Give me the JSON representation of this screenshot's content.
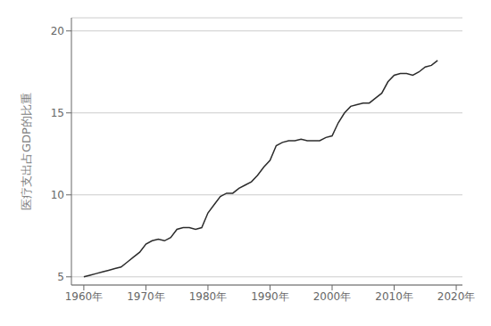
{
  "chart_data": {
    "type": "line",
    "x": [
      1960,
      1961,
      1962,
      1963,
      1964,
      1965,
      1966,
      1967,
      1968,
      1969,
      1970,
      1971,
      1972,
      1973,
      1974,
      1975,
      1976,
      1977,
      1978,
      1979,
      1980,
      1981,
      1982,
      1983,
      1984,
      1985,
      1986,
      1987,
      1988,
      1989,
      1990,
      1991,
      1992,
      1993,
      1994,
      1995,
      1996,
      1997,
      1998,
      1999,
      2000,
      2001,
      2002,
      2003,
      2004,
      2005,
      2006,
      2007,
      2008,
      2009,
      2010,
      2011,
      2012,
      2013,
      2014,
      2015,
      2016,
      2017
    ],
    "values": [
      5.0,
      5.1,
      5.2,
      5.3,
      5.4,
      5.5,
      5.6,
      5.9,
      6.2,
      6.5,
      7.0,
      7.2,
      7.3,
      7.2,
      7.4,
      7.9,
      8.0,
      8.0,
      7.9,
      8.0,
      8.9,
      9.4,
      9.9,
      10.1,
      10.1,
      10.4,
      10.6,
      10.8,
      11.2,
      11.7,
      12.1,
      13.0,
      13.2,
      13.3,
      13.3,
      13.4,
      13.3,
      13.3,
      13.3,
      13.5,
      13.6,
      14.4,
      15.0,
      15.4,
      15.5,
      15.6,
      15.6,
      15.9,
      16.2,
      16.9,
      17.3,
      17.4,
      17.4,
      17.3,
      17.5,
      17.8,
      17.9,
      18.2
    ],
    "color": "#2c2c2c",
    "ylabel": "医疗支出占GDP的比重",
    "xlim": [
      1958,
      2021
    ],
    "ylim": [
      4.5,
      20.8
    ],
    "xticks": [
      {
        "value": 1960,
        "label": "1960年"
      },
      {
        "value": 1970,
        "label": "1970年"
      },
      {
        "value": 1980,
        "label": "1980年"
      },
      {
        "value": 1990,
        "label": "1990年"
      },
      {
        "value": 2000,
        "label": "2000年"
      },
      {
        "value": 2010,
        "label": "2010年"
      },
      {
        "value": 2020,
        "label": "2020年"
      }
    ],
    "yticks": [
      5,
      10,
      15,
      20
    ],
    "grid": "y"
  }
}
